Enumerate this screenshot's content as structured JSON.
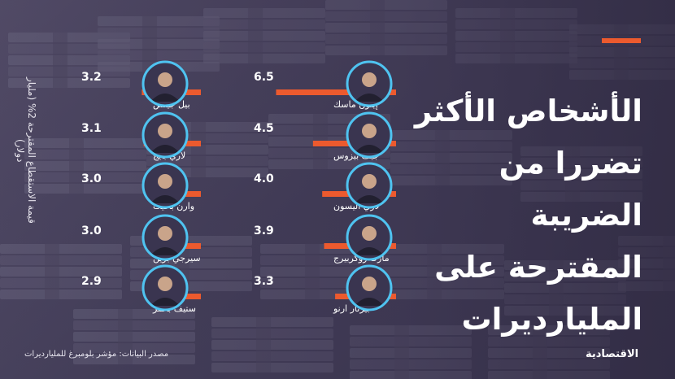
{
  "title_lines": [
    "الأشخاص الأكثر",
    "تضررا من الضريبة",
    "المقترحة على",
    "المليارديرات"
  ],
  "y_axis_label": "قيمة الاستقطاع المقترحة 2% (مليار دولار)",
  "source": "مصدر البيانات: مؤشر بلومبرغ للمليارديرات",
  "brand": "الاقتصادية",
  "colors": {
    "bar": "#ec5a2e",
    "ring": "#4fc3f0",
    "accent": "#ec5a2e",
    "text": "#ffffff"
  },
  "chart_data": {
    "type": "bar",
    "orientation": "horizontal",
    "ylabel": "قيمة الاستقطاع المقترحة 2% (مليار دولار)",
    "categories": [
      "إيلون ماسك",
      "جيف بيزوس",
      "لاري اليسون",
      "مارك زوكربيرج",
      "بيرنار ارنو",
      "بيل جيتس",
      "لاري بايج",
      "وارن بافيت",
      "سيرجي برين",
      "ستيف بالمر"
    ],
    "values": [
      6.5,
      4.5,
      4.0,
      3.9,
      3.3,
      3.2,
      3.1,
      3.0,
      3.0,
      2.9
    ],
    "value_labels": [
      "6.5",
      "4.5",
      "4.0",
      "3.9",
      "3.3",
      "3.2",
      "3.1",
      "3.0",
      "3.0",
      "2.9"
    ],
    "avatar_icons": [
      "portrait-icon",
      "portrait-icon",
      "portrait-icon",
      "portrait-icon",
      "portrait-icon",
      "portrait-icon",
      "portrait-icon",
      "portrait-icon",
      "portrait-icon",
      "portrait-icon"
    ]
  }
}
